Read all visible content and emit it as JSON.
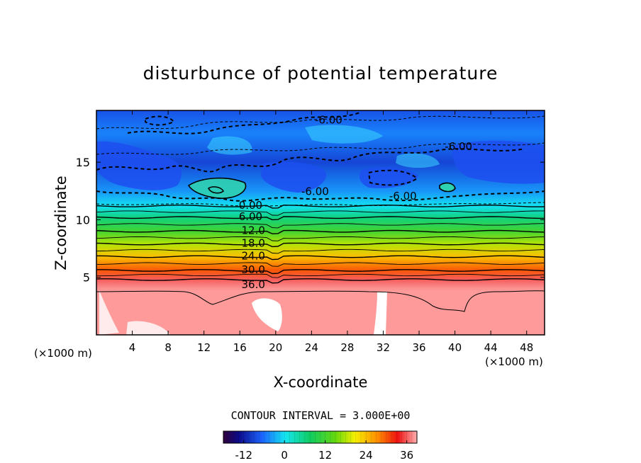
{
  "chart_data": {
    "type": "heatmap",
    "title": "disturbunce of potential temperature",
    "xlabel": "X-coordinate",
    "ylabel": "Z-coordinate",
    "x_unit": "(×1000 m)",
    "z_unit": "(×1000 m)",
    "xlim": [
      0,
      50
    ],
    "ylim": [
      0,
      19.5
    ],
    "x_ticks": [
      4,
      8,
      12,
      16,
      20,
      24,
      28,
      32,
      36,
      40,
      44,
      48
    ],
    "y_ticks": [
      5,
      10,
      15
    ],
    "grid": false,
    "contour_interval_label": "CONTOUR INTERVAL = 3.000E+00",
    "color_range": [
      -18,
      39
    ],
    "colorbar_ticks": [
      "-12",
      "0",
      "12",
      "24",
      "36"
    ],
    "colorbar_tick_values": [
      -12,
      0,
      12,
      24,
      36
    ],
    "contour_labels": [
      {
        "text": "-6.00",
        "x": 25.9,
        "z": 18.6
      },
      {
        "text": "-6.00",
        "x": 40.4,
        "z": 16.3
      },
      {
        "text": "-6.00",
        "x": 24.4,
        "z": 12.4
      },
      {
        "text": "-6.00",
        "x": 34.2,
        "z": 12.0
      },
      {
        "text": "0.00",
        "x": 17.2,
        "z": 11.2
      },
      {
        "text": "6.00",
        "x": 17.2,
        "z": 10.2
      },
      {
        "text": "12.0",
        "x": 17.5,
        "z": 9.0
      },
      {
        "text": "18.0",
        "x": 17.5,
        "z": 7.9
      },
      {
        "text": "24.0",
        "x": 17.5,
        "z": 6.8
      },
      {
        "text": "30.0",
        "x": 17.5,
        "z": 5.6
      },
      {
        "text": "36.0",
        "x": 17.5,
        "z": 4.3
      }
    ],
    "background_profile": [
      {
        "z": 4.0,
        "value": 38
      },
      {
        "z": 4.8,
        "value": 36
      },
      {
        "z": 5.6,
        "value": 30
      },
      {
        "z": 6.8,
        "value": 24
      },
      {
        "z": 7.9,
        "value": 18
      },
      {
        "z": 9.0,
        "value": 12
      },
      {
        "z": 10.2,
        "value": 6
      },
      {
        "z": 11.2,
        "value": 0
      },
      {
        "z": 12.5,
        "value": -4
      },
      {
        "z": 15.0,
        "value": -9
      },
      {
        "z": 17.5,
        "value": -5
      },
      {
        "z": 19.5,
        "value": -8
      }
    ]
  }
}
